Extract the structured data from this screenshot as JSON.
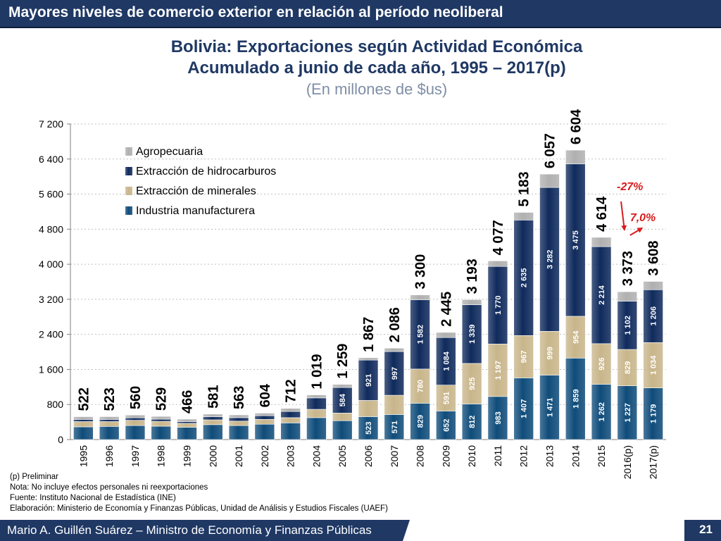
{
  "header": {
    "banner": "Mayores niveles de comercio exterior en relación al período neoliberal"
  },
  "chart_data": {
    "type": "bar",
    "stacked": true,
    "title": "Bolivia: Exportaciones según Actividad Económica",
    "title_line2": "Acumulado a junio de cada año, 1995 – 2017(p)",
    "subtitle": "(En millones de $us)",
    "xlabel": "",
    "ylabel": "",
    "ylim": [
      0,
      7200
    ],
    "yticks": [
      0,
      800,
      1600,
      2400,
      3200,
      4000,
      4800,
      5600,
      6400,
      7200
    ],
    "ytick_labels": [
      "0",
      "800",
      "1 600",
      "2 400",
      "3 200",
      "4 000",
      "4 800",
      "5 600",
      "6 400",
      "7 200"
    ],
    "grid": true,
    "legend_position": "top-left",
    "categories": [
      "1995",
      "1996",
      "1997",
      "1998",
      "1999",
      "2000",
      "2001",
      "2002",
      "2003",
      "2004",
      "2005",
      "2006",
      "2007",
      "2008",
      "2009",
      "2010",
      "2011",
      "2012",
      "2013",
      "2014",
      "2015",
      "2016(p)",
      "2017(p)"
    ],
    "totals": [
      522,
      523,
      560,
      529,
      466,
      581,
      563,
      604,
      712,
      1019,
      1259,
      1867,
      2086,
      3300,
      2445,
      3193,
      4077,
      5183,
      6057,
      6604,
      4614,
      3373,
      3608
    ],
    "total_labels": [
      "522",
      "523",
      "560",
      "529",
      "466",
      "581",
      "563",
      "604",
      "712",
      "1 019",
      "1 259",
      "1 867",
      "2 086",
      "3 300",
      "2 445",
      "3 193",
      "4 077",
      "5 183",
      "6 057",
      "6 604",
      "4 614",
      "3 373",
      "3 608"
    ],
    "series": [
      {
        "name": "Industria manufacturera",
        "color": "#0f4c7a",
        "values": [
          290,
          300,
          320,
          305,
          280,
          340,
          320,
          350,
          380,
          500,
          430,
          523,
          571,
          829,
          652,
          812,
          983,
          1407,
          1471,
          1859,
          1262,
          1227,
          1179
        ],
        "labels": [
          null,
          null,
          null,
          null,
          null,
          null,
          null,
          null,
          null,
          null,
          null,
          "523",
          "571",
          "829",
          "652",
          "812",
          "983",
          "1 407",
          "1 471",
          "1 859",
          "1 262",
          "1 227",
          "1 179"
        ]
      },
      {
        "name": "Extracción de minerales",
        "color": "#c8b58a",
        "values": [
          120,
          110,
          120,
          110,
          90,
          110,
          100,
          110,
          120,
          190,
          175,
          370,
          440,
          780,
          591,
          925,
          1197,
          967,
          999,
          954,
          926,
          829,
          1034
        ],
        "labels": [
          null,
          null,
          null,
          null,
          null,
          null,
          null,
          null,
          null,
          null,
          null,
          null,
          null,
          "780",
          "591",
          "925",
          "1 197",
          "967",
          "999",
          "954",
          "926",
          "829",
          "1 034"
        ]
      },
      {
        "name": "Extracción de hidrocarburos",
        "color": "#0f2a5c",
        "values": [
          50,
          50,
          55,
          50,
          40,
          70,
          80,
          85,
          140,
          260,
          584,
          921,
          997,
          1582,
          1084,
          1339,
          1770,
          2635,
          3282,
          3475,
          2214,
          1102,
          1206
        ],
        "labels": [
          null,
          null,
          null,
          null,
          null,
          null,
          null,
          null,
          null,
          null,
          "584",
          "921",
          "997",
          "1 582",
          "1 084",
          "1 339",
          "1 770",
          "2 635",
          "3 282",
          "3 475",
          "2 214",
          "1 102",
          "1 206"
        ]
      },
      {
        "name": "Agropecuaria",
        "color": "#b0b0b0",
        "values": [
          62,
          63,
          65,
          64,
          56,
          61,
          63,
          59,
          72,
          69,
          70,
          53,
          78,
          109,
          118,
          117,
          127,
          174,
          305,
          316,
          212,
          215,
          189
        ],
        "labels": []
      }
    ],
    "annotations": [
      {
        "text": "-27%",
        "from": "2015",
        "to": "2016(p)"
      },
      {
        "text": "7,0%",
        "from": "2016(p)",
        "to": "2017(p)"
      }
    ]
  },
  "footnotes": [
    "(p) Preliminar",
    "Nota: No incluye efectos personales ni reexportaciones",
    "Fuente: Instituto Nacional de Estadística (INE)",
    "Elaboración: Ministerio de Economía y Finanzas Públicas, Unidad de Análisis y Estudios Fiscales (UAEF)"
  ],
  "footer": {
    "author": "Mario A. Guillén Suárez – Ministro de Economía y Finanzas Públicas",
    "page": "21"
  }
}
